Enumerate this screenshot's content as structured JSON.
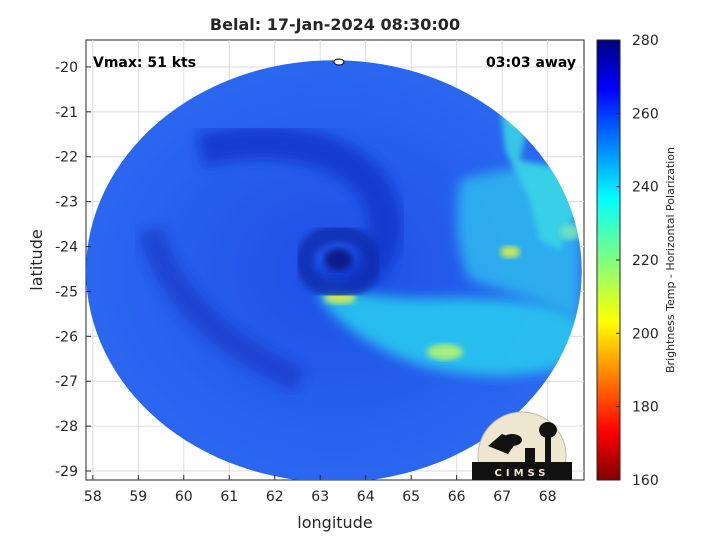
{
  "chart_data": {
    "type": "heatmap",
    "title": "Belal: 17-Jan-2024 08:30:00",
    "xlabel": "longitude",
    "ylabel": "latitude",
    "xlim": [
      57.85,
      68.8
    ],
    "ylim": [
      -29.2,
      -19.4
    ],
    "xticks": [
      58,
      59,
      60,
      61,
      62,
      63,
      64,
      65,
      66,
      67,
      68
    ],
    "yticks": [
      -20,
      -21,
      -22,
      -23,
      -24,
      -25,
      -26,
      -27,
      -28,
      -29
    ],
    "grid": true,
    "annotations": {
      "vmax": "Vmax: 51 kts",
      "time_offset": "03:03 away"
    },
    "storm_center": {
      "lon": 63.4,
      "lat": -24.2
    },
    "swath": {
      "center_lon": 63.3,
      "center_lat": -24.55,
      "radius_lon": 5.45,
      "radius_lat": 4.7
    },
    "colorbar": {
      "label": "Brightness Temp - Horizontal Polarization",
      "range": [
        160,
        280
      ],
      "ticks": [
        160,
        180,
        200,
        220,
        240,
        260,
        280
      ],
      "colormap": "jet"
    },
    "logo": "CIMSS"
  }
}
